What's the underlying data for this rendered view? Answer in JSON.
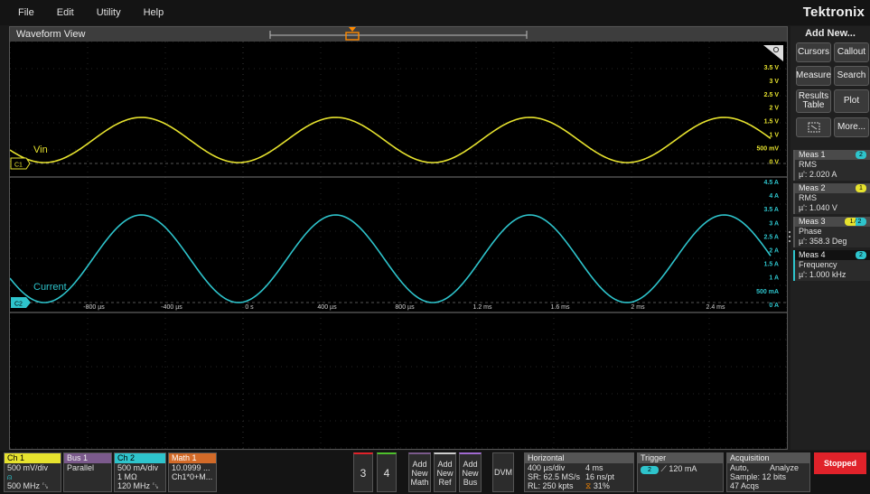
{
  "menu": {
    "items": [
      "File",
      "Edit",
      "Utility",
      "Help"
    ],
    "brand": "Tektronix"
  },
  "waveform_view": {
    "title": "Waveform View",
    "ch1_label": "Vin",
    "ch2_label": "Current",
    "ch1_marker": "C1",
    "ch2_marker": "C2",
    "ch1_axis": [
      "3.5 V",
      "3 V",
      "2.5 V",
      "2 V",
      "1.5 V",
      "1 V",
      "500 mV",
      "0 V"
    ],
    "ch2_axis": [
      "4.5 A",
      "4 A",
      "3.5 A",
      "3 A",
      "2.5 A",
      "2 A",
      "1.5 A",
      "1 A",
      "500 mA",
      "0 A"
    ],
    "time_axis": [
      "-800 µs",
      "-400 µs",
      "0 s",
      "400 µs",
      "800 µs",
      "1.2 ms",
      "1.6 ms",
      "2 ms",
      "2.4 ms"
    ],
    "ch1_color": "#e6e22e",
    "ch2_color": "#2ec4cc"
  },
  "right_panel": {
    "add_new": "Add New...",
    "buttons": {
      "cursors": "Cursors",
      "callout": "Callout",
      "measure": "Measure",
      "search": "Search",
      "results_table_1": "Results",
      "results_table_2": "Table",
      "plot": "Plot",
      "more": "More..."
    },
    "measurements": [
      {
        "title": "Meas 1",
        "type": "RMS",
        "value": "µ': 2.020 A",
        "chip": "2"
      },
      {
        "title": "Meas 2",
        "type": "RMS",
        "value": "µ': 1.040 V",
        "chip": "1"
      },
      {
        "title": "Meas 3",
        "type": "Phase",
        "value": "µ': 358.3 Deg",
        "chip": "1 ⁄ 2"
      },
      {
        "title": "Meas 4",
        "type": "Frequency",
        "value": "µ': 1.000 kHz",
        "chip": "2"
      }
    ]
  },
  "bottom": {
    "ch1": {
      "title": "Ch 1",
      "line1": "500 mV/div",
      "line2": "",
      "line3": "500 MHz"
    },
    "bus1": {
      "title": "Bus 1",
      "line1": "Parallel"
    },
    "ch2": {
      "title": "Ch 2",
      "line1": "500 mA/div",
      "line2": "1 MΩ",
      "line3": "120 MHz"
    },
    "math1": {
      "title": "Math 1",
      "line1": "10.0999 ...",
      "line2": "Ch1*0+M..."
    },
    "ch3": "3",
    "ch4": "4",
    "add_math": [
      "Add",
      "New",
      "Math"
    ],
    "add_ref": [
      "Add",
      "New",
      "Ref"
    ],
    "add_bus": [
      "Add",
      "New",
      "Bus"
    ],
    "dvm": "DVM",
    "horizontal": {
      "title": "Horizontal",
      "line1a": "400 µs/div",
      "line1b": "4 ms",
      "line2a": "SR: 62.5 MS/s",
      "line2b": "16 ns/pt",
      "line3a": "RL: 250 kpts",
      "line3b": "31%"
    },
    "trigger": {
      "title": "Trigger",
      "chip": "2",
      "value": "120 mA"
    },
    "acquisition": {
      "title": "Acquisition",
      "line1a": "Auto,",
      "line1b": "Analyze",
      "line2": "Sample: 12 bits",
      "line3": "47 Acqs"
    },
    "status": "Stopped"
  }
}
